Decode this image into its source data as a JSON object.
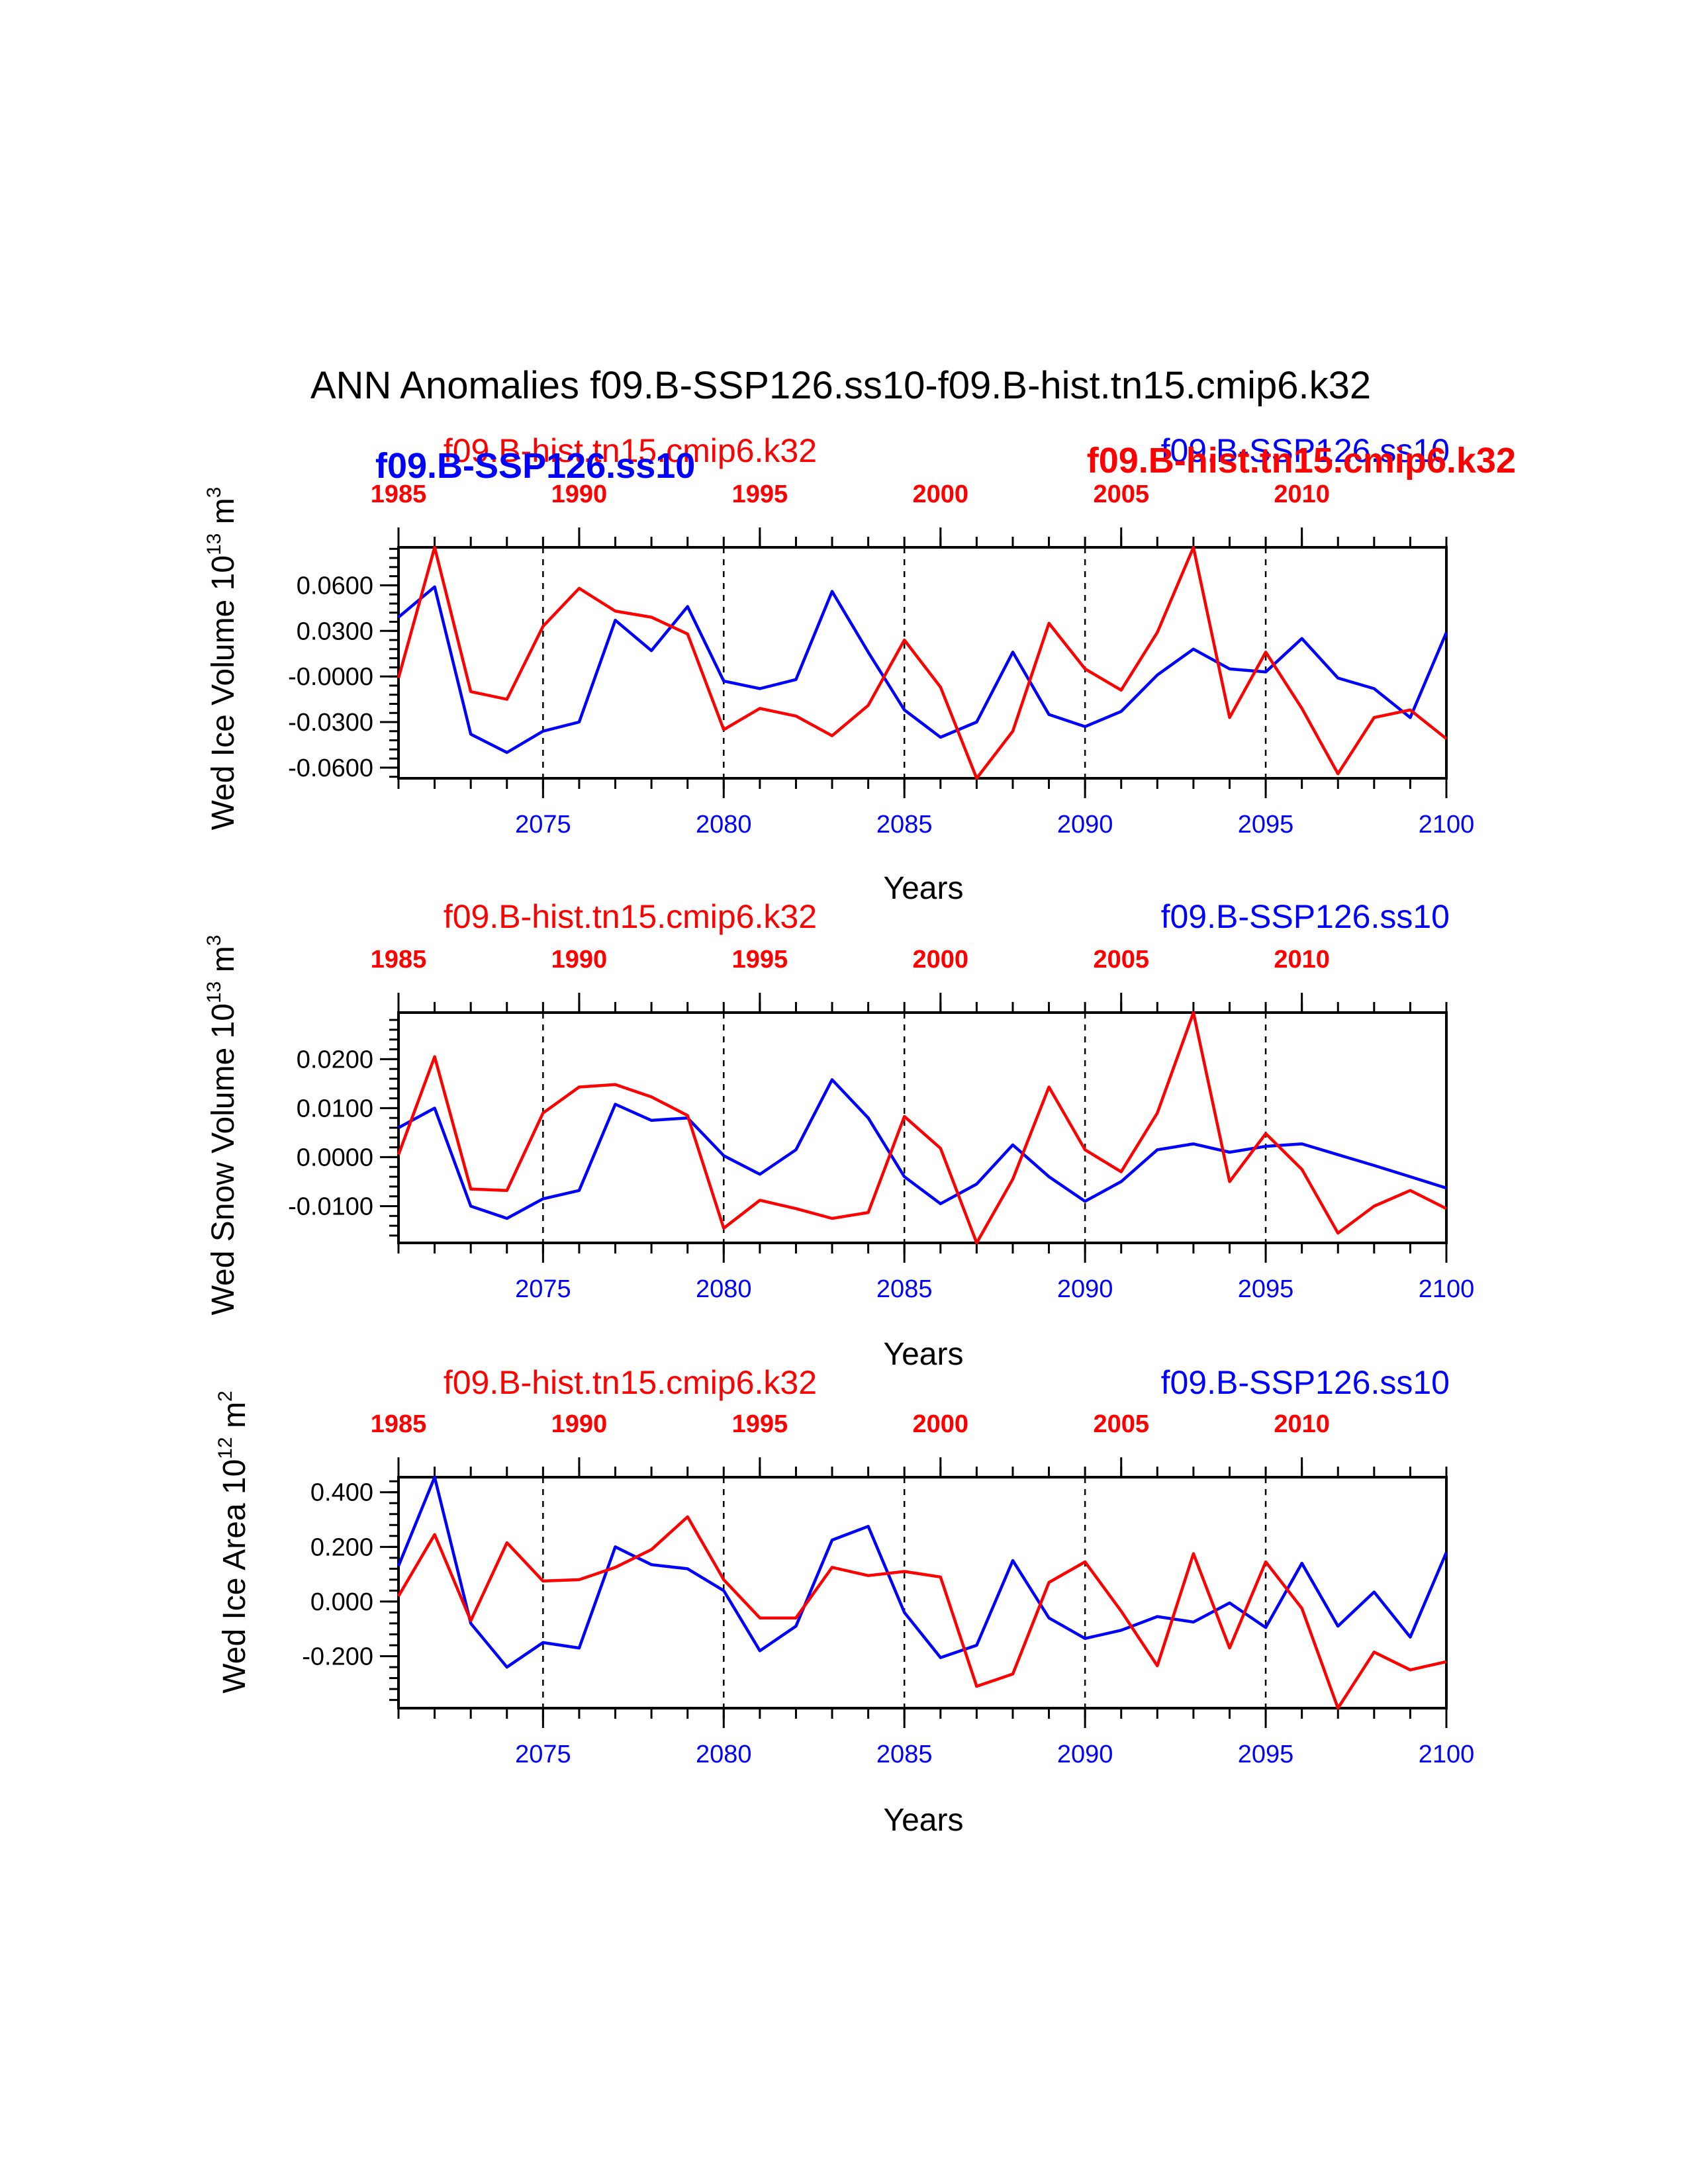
{
  "title": "ANN Anomalies f09.B-SSP126.ss10-f09.B-hist.tn15.cmip6.k32",
  "colors": {
    "case1": "#0000ff",
    "case2": "#ff0000",
    "axis": "#000000"
  },
  "chart_data": [
    {
      "type": "line",
      "ylabel": "Wed Ice Volume 10",
      "ylabel_exp": "13",
      "ylabel_unit": " m",
      "ylabel_unit_exp": "3",
      "xlabel": "Years",
      "xlim": [
        2071,
        2100
      ],
      "x2lim": [
        1985,
        2014
      ],
      "ylim": [
        -0.067,
        0.085
      ],
      "yticks": [
        -0.06,
        -0.03,
        0.0,
        0.03,
        0.06
      ],
      "ytick_labels": [
        "-0.0600",
        "-0.0300",
        "-0.0000",
        "0.0300",
        "0.0600"
      ],
      "xticks": [
        2075,
        2080,
        2085,
        2090,
        2095,
        2100
      ],
      "xtick_labels": [
        "2075",
        "2080",
        "2085",
        "2090",
        "2095",
        "2100"
      ],
      "x2ticks": [
        1985,
        1990,
        1995,
        2000,
        2005,
        2010
      ],
      "x2tick_labels": [
        "1985",
        "1990",
        "1995",
        "2000",
        "2005",
        "2010"
      ],
      "case_labels": {
        "red": "f09.B-hist.tn15.cmip6.k32",
        "blue": "f09.B-SSP126.ss10",
        "blue_bold": "f09.B-SSP126.ss10",
        "red_bold": "f09.B-hist.tn15.cmip6.k32"
      },
      "series": [
        {
          "name": "f09.B-SSP126.ss10",
          "color": "#0000ff",
          "x_start": 2071,
          "values": [
            0.039,
            0.059,
            -0.038,
            -0.05,
            -0.036,
            -0.03,
            0.037,
            0.017,
            0.046,
            -0.003,
            -0.008,
            -0.002,
            0.056,
            0.016,
            -0.022,
            -0.04,
            -0.03,
            0.016,
            -0.025,
            -0.033,
            -0.023,
            0.001,
            0.018,
            0.005,
            0.003,
            0.025,
            -0.001,
            -0.008,
            -0.027,
            0.029
          ]
        },
        {
          "name": "f09.B-hist.tn15.cmip6.k32",
          "color": "#ff0000",
          "x_start": 1985,
          "values": [
            -0.001,
            0.085,
            -0.01,
            -0.015,
            0.033,
            0.058,
            0.043,
            0.039,
            0.028,
            -0.035,
            -0.021,
            -0.026,
            -0.039,
            -0.019,
            0.024,
            -0.007,
            -0.067,
            -0.036,
            0.035,
            0.005,
            -0.009,
            0.029,
            0.085,
            -0.027,
            0.016,
            -0.021,
            -0.064,
            -0.027,
            -0.022,
            -0.041
          ]
        }
      ]
    },
    {
      "type": "line",
      "ylabel": "Wed Snow Volume 10",
      "ylabel_exp": "13",
      "ylabel_unit": " m",
      "ylabel_unit_exp": "3",
      "xlabel": "Years",
      "xlim": [
        2071,
        2100
      ],
      "x2lim": [
        1985,
        2014
      ],
      "ylim": [
        -0.0175,
        0.0295
      ],
      "yticks": [
        -0.01,
        0.0,
        0.01,
        0.02
      ],
      "ytick_labels": [
        "-0.0100",
        "0.0000",
        "0.0100",
        "0.0200"
      ],
      "xticks": [
        2075,
        2080,
        2085,
        2090,
        2095,
        2100
      ],
      "xtick_labels": [
        "2075",
        "2080",
        "2085",
        "2090",
        "2095",
        "2100"
      ],
      "x2ticks": [
        1985,
        1990,
        1995,
        2000,
        2005,
        2010
      ],
      "x2tick_labels": [
        "1985",
        "1990",
        "1995",
        "2000",
        "2005",
        "2010"
      ],
      "case_labels": {
        "red": "f09.B-hist.tn15.cmip6.k32",
        "blue": "f09.B-SSP126.ss10"
      },
      "series": [
        {
          "name": "f09.B-SSP126.ss10",
          "color": "#0000ff",
          "x_start": 2071,
          "values": [
            0.006,
            0.01,
            -0.01,
            -0.0125,
            -0.0085,
            -0.0068,
            0.0108,
            0.0075,
            0.008,
            0.0003,
            -0.0035,
            0.0015,
            0.0158,
            0.008,
            -0.004,
            -0.0095,
            -0.0055,
            0.0025,
            -0.004,
            -0.009,
            -0.005,
            0.0015,
            0.0027,
            0.001,
            0.0022,
            0.0027,
            0.0005,
            -0.0017,
            -0.004,
            -0.0063
          ]
        },
        {
          "name": "f09.B-hist.tn15.cmip6.k32",
          "color": "#ff0000",
          "x_start": 1985,
          "values": [
            0.0005,
            0.0205,
            -0.0065,
            -0.0068,
            0.009,
            0.0143,
            0.0148,
            0.0123,
            0.0085,
            -0.0145,
            -0.0088,
            -0.0105,
            -0.0125,
            -0.0113,
            0.0083,
            0.0018,
            -0.0175,
            -0.0045,
            0.0143,
            0.0015,
            -0.003,
            0.009,
            0.0295,
            -0.005,
            0.0048,
            -0.0025,
            -0.0155,
            -0.01,
            -0.0068,
            -0.0105
          ]
        }
      ]
    },
    {
      "type": "line",
      "ylabel": "Wed Ice Area 10",
      "ylabel_exp": "12",
      "ylabel_unit": " m",
      "ylabel_unit_exp": "2",
      "xlabel": "Years",
      "xlim": [
        2071,
        2100
      ],
      "x2lim": [
        1985,
        2014
      ],
      "ylim": [
        -0.39,
        0.455
      ],
      "yticks": [
        -0.2,
        0.0,
        0.2,
        0.4
      ],
      "ytick_labels": [
        "-0.200",
        "0.000",
        "0.200",
        "0.400"
      ],
      "xticks": [
        2075,
        2080,
        2085,
        2090,
        2095,
        2100
      ],
      "xtick_labels": [
        "2075",
        "2080",
        "2085",
        "2090",
        "2095",
        "2100"
      ],
      "x2ticks": [
        1985,
        1990,
        1995,
        2000,
        2005,
        2010
      ],
      "x2tick_labels": [
        "1985",
        "1990",
        "1995",
        "2000",
        "2005",
        "2010"
      ],
      "case_labels": {
        "red": "f09.B-hist.tn15.cmip6.k32",
        "blue": "f09.B-SSP126.ss10"
      },
      "series": [
        {
          "name": "f09.B-SSP126.ss10",
          "color": "#0000ff",
          "x_start": 2071,
          "values": [
            0.13,
            0.455,
            -0.08,
            -0.24,
            -0.15,
            -0.17,
            0.2,
            0.135,
            0.12,
            0.04,
            -0.18,
            -0.09,
            0.225,
            0.275,
            -0.04,
            -0.205,
            -0.16,
            0.15,
            -0.06,
            -0.135,
            -0.105,
            -0.055,
            -0.075,
            -0.005,
            -0.095,
            0.14,
            -0.09,
            0.035,
            -0.13,
            0.18
          ]
        },
        {
          "name": "f09.B-hist.tn15.cmip6.k32",
          "color": "#ff0000",
          "x_start": 1985,
          "values": [
            0.02,
            0.245,
            -0.07,
            0.215,
            0.075,
            0.08,
            0.125,
            0.19,
            0.31,
            0.08,
            -0.06,
            -0.06,
            0.125,
            0.095,
            0.11,
            0.09,
            -0.31,
            -0.265,
            0.07,
            0.145,
            -0.035,
            -0.235,
            0.175,
            -0.17,
            0.145,
            -0.025,
            -0.39,
            -0.185,
            -0.25,
            -0.22
          ]
        }
      ]
    }
  ]
}
